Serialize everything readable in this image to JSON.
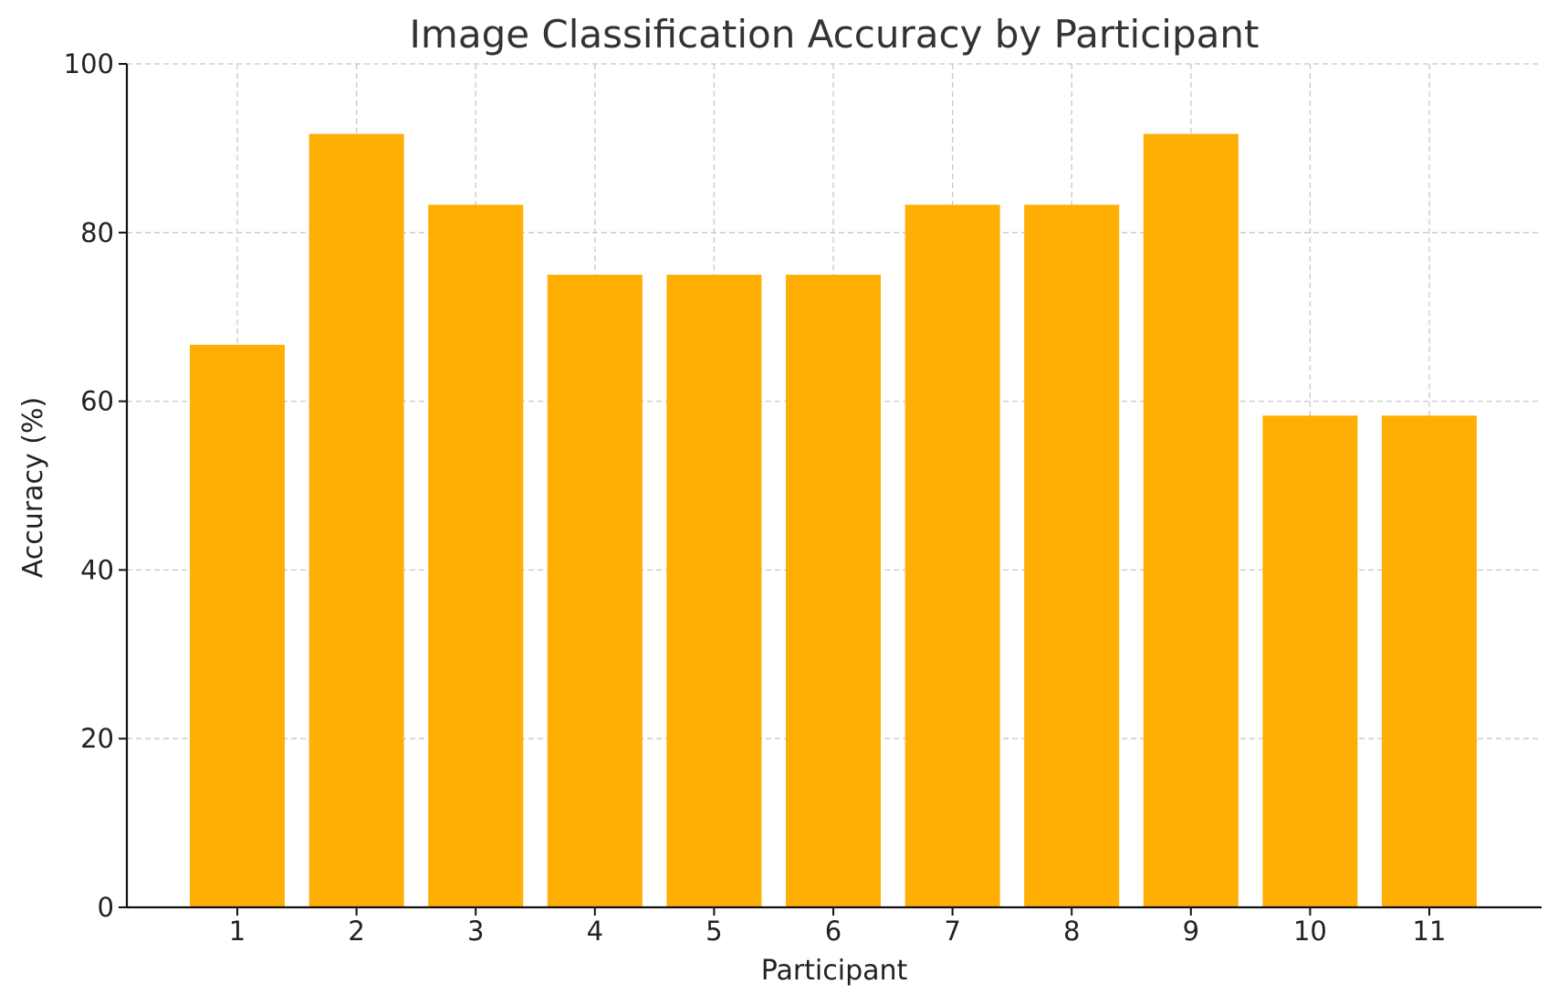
{
  "chart_data": {
    "type": "bar",
    "title": "Image Classification Accuracy by Participant",
    "xlabel": "Participant",
    "ylabel": "Accuracy (%)",
    "categories": [
      "1",
      "2",
      "3",
      "4",
      "5",
      "6",
      "7",
      "8",
      "9",
      "10",
      "11"
    ],
    "values": [
      66.7,
      91.7,
      83.3,
      75.0,
      75.0,
      75.0,
      83.3,
      83.3,
      91.7,
      58.3,
      58.3
    ],
    "ylim": [
      0,
      100
    ],
    "yticks": [
      "0",
      "20",
      "40",
      "60",
      "80",
      "100"
    ],
    "grid": true,
    "bar_color": "#FFAE03"
  }
}
